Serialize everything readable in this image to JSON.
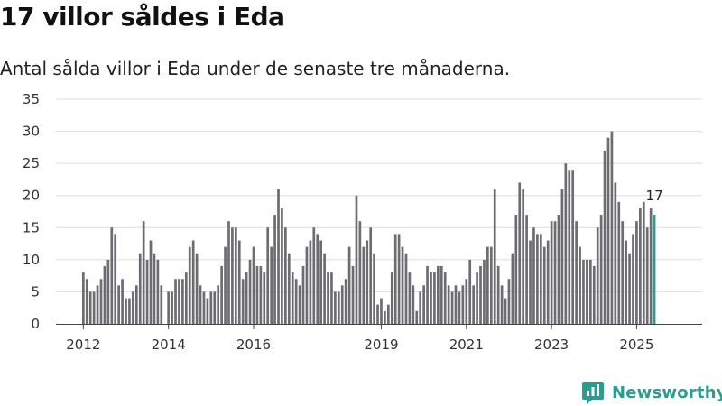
{
  "title": "17 villor såldes i Eda",
  "subtitle": "Antal sålda villor i Eda under de senaste tre månaderna.",
  "brand": {
    "name": "Newsworthy"
  },
  "colors": {
    "bar": "#6d6c71",
    "highlight": "#2a9d8f",
    "grid": "#dddddd",
    "axis": "#444444"
  },
  "chart_data": {
    "type": "bar",
    "title": "17 villor såldes i Eda",
    "subtitle": "Antal sålda villor i Eda under de senaste tre månaderna.",
    "xlabel": "",
    "ylabel": "",
    "ylim": [
      0,
      35
    ],
    "yticks": [
      0,
      5,
      10,
      15,
      20,
      25,
      30,
      35
    ],
    "grid": true,
    "x_ticks": [
      {
        "label": "2012",
        "index": 0
      },
      {
        "label": "2014",
        "index": 24
      },
      {
        "label": "2016",
        "index": 48
      },
      {
        "label": "2019",
        "index": 84
      },
      {
        "label": "2021",
        "index": 108
      },
      {
        "label": "2023",
        "index": 132
      },
      {
        "label": "2025",
        "index": 156
      }
    ],
    "highlight_label": "17",
    "first_period": "2012-01",
    "last_period": "2025-09",
    "values": [
      8,
      7,
      5,
      5,
      6,
      7,
      9,
      10,
      15,
      14,
      6,
      7,
      4,
      4,
      5,
      6,
      11,
      16,
      10,
      13,
      11,
      10,
      6,
      null,
      5,
      5,
      7,
      7,
      7,
      8,
      12,
      13,
      11,
      6,
      5,
      4,
      5,
      5,
      6,
      9,
      12,
      16,
      15,
      15,
      13,
      7,
      8,
      10,
      12,
      9,
      9,
      8,
      15,
      12,
      17,
      21,
      18,
      15,
      11,
      8,
      7,
      6,
      9,
      12,
      13,
      15,
      14,
      13,
      11,
      8,
      8,
      5,
      5,
      6,
      7,
      12,
      9,
      20,
      16,
      12,
      13,
      15,
      11,
      3,
      4,
      2,
      3,
      8,
      14,
      14,
      12,
      11,
      8,
      6,
      2,
      5,
      6,
      9,
      8,
      8,
      9,
      9,
      8,
      6,
      5,
      6,
      5,
      6,
      7,
      10,
      6,
      8,
      9,
      10,
      12,
      12,
      21,
      9,
      6,
      4,
      7,
      11,
      17,
      22,
      21,
      17,
      13,
      15,
      14,
      14,
      12,
      13,
      16,
      16,
      17,
      21,
      25,
      24,
      24,
      16,
      12,
      10,
      10,
      10,
      9,
      15,
      17,
      27,
      29,
      30,
      22,
      19,
      16,
      13,
      11,
      14,
      16,
      18,
      19,
      15,
      18,
      17
    ]
  }
}
